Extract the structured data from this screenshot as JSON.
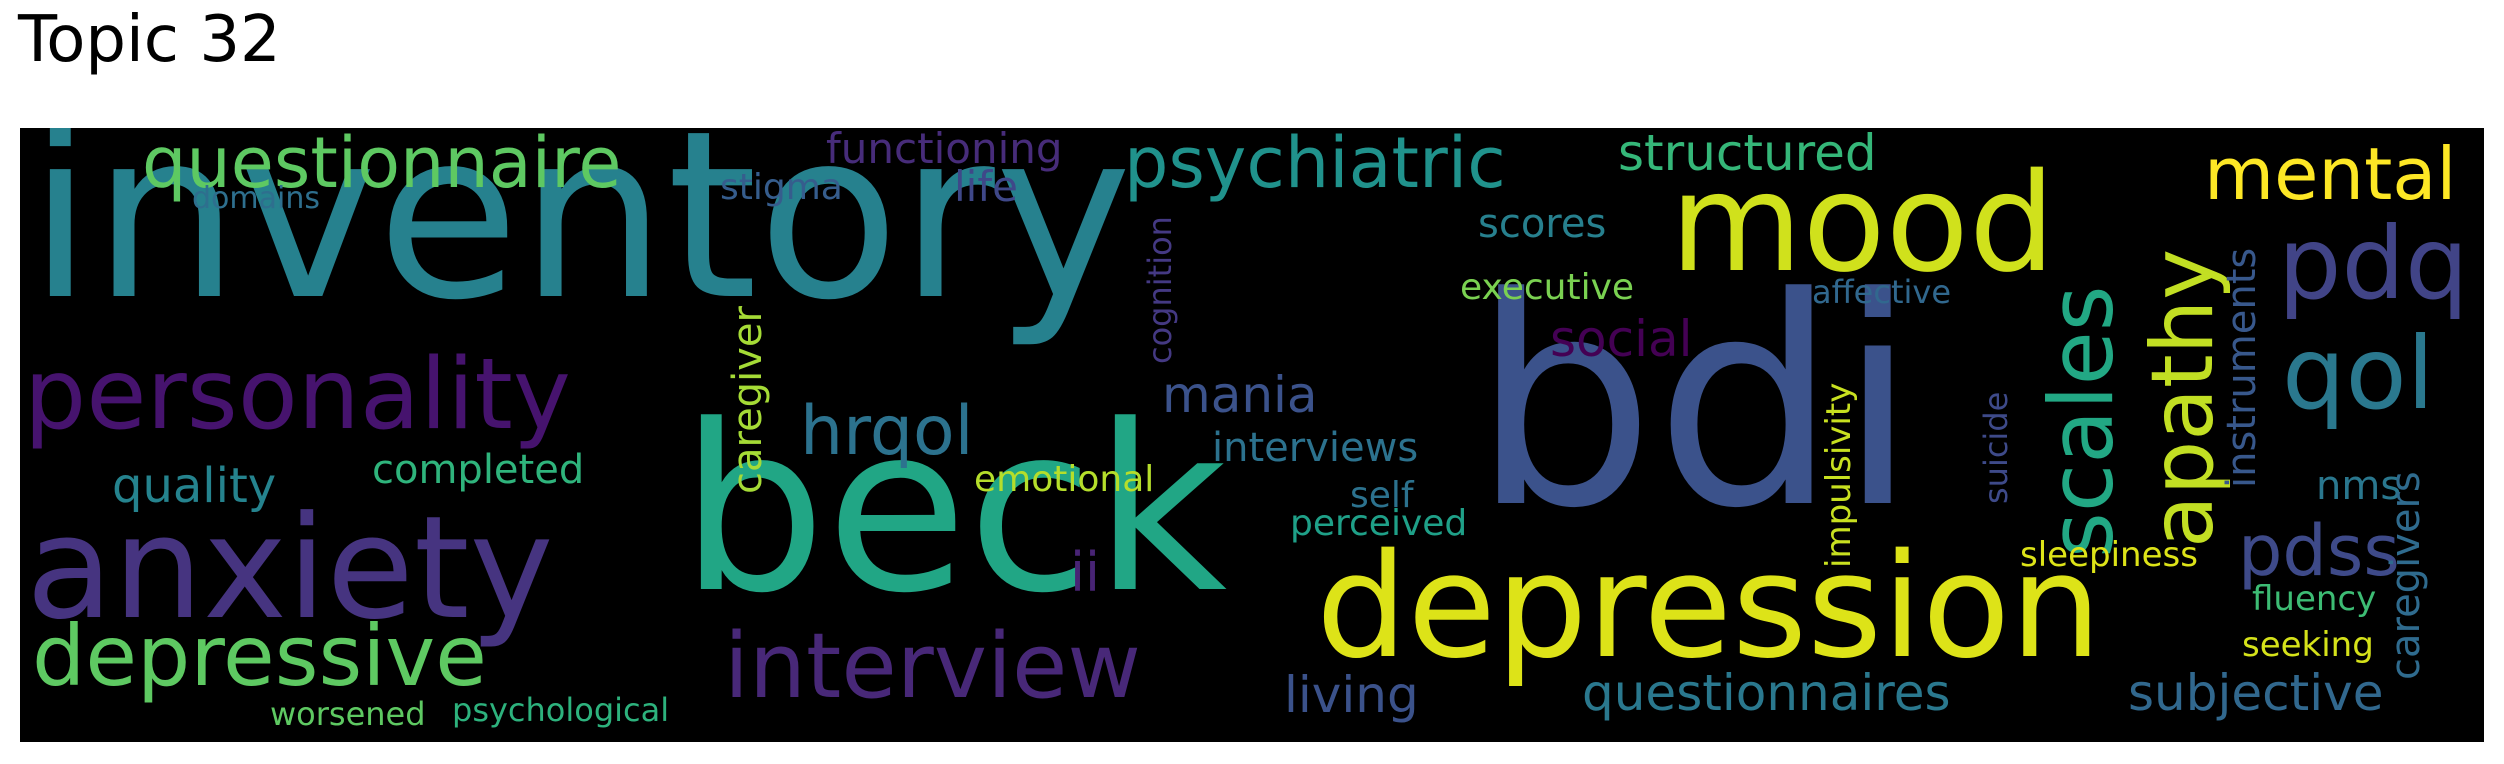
{
  "title": "Topic 32",
  "words": {
    "inventory": {
      "text": "inventory",
      "color": "#26818e"
    },
    "bdi": {
      "text": "bdi",
      "color": "#3b528b"
    },
    "beck": {
      "text": "beck",
      "color": "#21a685"
    },
    "depression": {
      "text": "depression",
      "color": "#dde318"
    },
    "anxiety": {
      "text": "anxiety",
      "color": "#463480"
    },
    "mood": {
      "text": "mood",
      "color": "#d0e11c"
    },
    "personality": {
      "text": "personality",
      "color": "#46136e"
    },
    "interview": {
      "text": "interview",
      "color": "#482878"
    },
    "depressive": {
      "text": "depressive",
      "color": "#5ec962"
    },
    "questionnaire": {
      "text": "questionnaire",
      "color": "#5ec962"
    },
    "psychiatric": {
      "text": "psychiatric",
      "color": "#20928c"
    },
    "scales": {
      "text": "scales",
      "color": "#22a884"
    },
    "apathy": {
      "text": "apathy",
      "color": "#c2df23"
    },
    "mental": {
      "text": "mental",
      "color": "#fde725"
    },
    "pdq": {
      "text": "pdq",
      "color": "#414487"
    },
    "qol": {
      "text": "qol",
      "color": "#2a788e"
    },
    "pdss": {
      "text": "pdss",
      "color": "#3e4a89"
    },
    "hrqol": {
      "text": "hrqol",
      "color": "#2c728e"
    },
    "quality": {
      "text": "quality",
      "color": "#25838e"
    },
    "completed": {
      "text": "completed",
      "color": "#2fb47c"
    },
    "structured": {
      "text": "structured",
      "color": "#35b779"
    },
    "functioning": {
      "text": "functioning",
      "color": "#472c7a"
    },
    "life": {
      "text": "life",
      "color": "#3f4889"
    },
    "stigma": {
      "text": "stigma",
      "color": "#365d8d"
    },
    "domains": {
      "text": "domains",
      "color": "#2e6f8e"
    },
    "social": {
      "text": "social",
      "color": "#440154"
    },
    "mania": {
      "text": "mania",
      "color": "#3b528b"
    },
    "scores": {
      "text": "scores",
      "color": "#27808e"
    },
    "executive": {
      "text": "executive",
      "color": "#7ad151"
    },
    "affective": {
      "text": "affective",
      "color": "#31688e"
    },
    "caregiver": {
      "text": "caregiver",
      "color": "#a5db36"
    },
    "cognition": {
      "text": "cognition",
      "color": "#443983"
    },
    "interviews": {
      "text": "interviews",
      "color": "#2c728e"
    },
    "self": {
      "text": "self",
      "color": "#2c728e"
    },
    "perceived": {
      "text": "perceived",
      "color": "#1fa088"
    },
    "emotional": {
      "text": "emotional",
      "color": "#b5de2b"
    },
    "ii": {
      "text": "ii",
      "color": "#482475"
    },
    "living": {
      "text": "living",
      "color": "#3b528b"
    },
    "questionnaires": {
      "text": "questionnaires",
      "color": "#2a788e"
    },
    "subjective": {
      "text": "subjective",
      "color": "#31688e"
    },
    "impulsivity": {
      "text": "impulsivity",
      "color": "#c8e020"
    },
    "suicide": {
      "text": "suicide",
      "color": "#3e4a89"
    },
    "instruments": {
      "text": "instruments",
      "color": "#38588c"
    },
    "nms": {
      "text": "nms",
      "color": "#2a778e"
    },
    "caregivers": {
      "text": "caregivers",
      "color": "#2f6b8e"
    },
    "sleepiness": {
      "text": "sleepiness",
      "color": "#dde318"
    },
    "fluency": {
      "text": "fluency",
      "color": "#3dbc74"
    },
    "seeking": {
      "text": "seeking",
      "color": "#d5e21a"
    },
    "worsened": {
      "text": "worsened",
      "color": "#5ec962"
    },
    "psychological": {
      "text": "psychological",
      "color": "#2db27d"
    }
  }
}
